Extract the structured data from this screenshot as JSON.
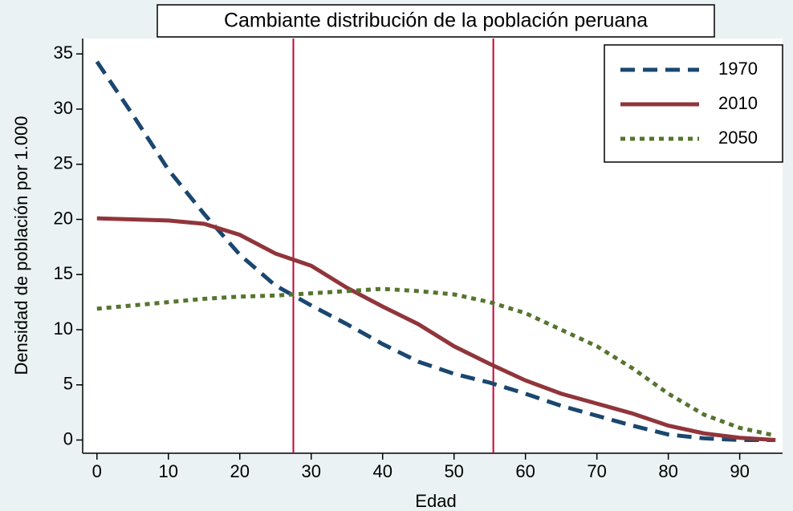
{
  "chart_data": {
    "type": "line",
    "title": "Cambiante distribución de la población peruana",
    "xlabel": "Edad",
    "ylabel": "Densidad de población por 1.000",
    "x": [
      0,
      5,
      10,
      15,
      20,
      25,
      30,
      35,
      40,
      45,
      50,
      55,
      60,
      65,
      70,
      75,
      80,
      85,
      90,
      95
    ],
    "series": [
      {
        "name": "1970",
        "color": "#1a476f",
        "dash": "dashed",
        "values": [
          34.3,
          29.5,
          24.5,
          20.5,
          16.8,
          14,
          12.2,
          10.5,
          8.7,
          7.1,
          6,
          5.2,
          4.2,
          3.1,
          2.2,
          1.3,
          0.5,
          0.15,
          0,
          0
        ]
      },
      {
        "name": "2010",
        "color": "#90353b",
        "dash": "solid",
        "values": [
          20.1,
          20,
          19.9,
          19.6,
          18.6,
          16.9,
          15.8,
          13.8,
          12.1,
          10.5,
          8.5,
          6.9,
          5.4,
          4.2,
          3.3,
          2.4,
          1.3,
          0.6,
          0.2,
          0
        ]
      },
      {
        "name": "2050",
        "color": "#55752f",
        "dash": "dotted",
        "values": [
          11.9,
          12.2,
          12.5,
          12.8,
          13,
          13.1,
          13.3,
          13.5,
          13.7,
          13.5,
          13.2,
          12.5,
          11.5,
          10,
          8.5,
          6.5,
          4.2,
          2.3,
          1.1,
          0.4
        ]
      }
    ],
    "vlines": [
      27.5,
      55.5
    ],
    "vline_color": "#c10534",
    "xlim": [
      -2,
      96
    ],
    "ylim": [
      -1.2,
      36.4
    ],
    "xticks": [
      0,
      10,
      20,
      30,
      40,
      50,
      60,
      70,
      80,
      90
    ],
    "yticks": [
      0,
      5,
      10,
      15,
      20,
      25,
      30,
      35
    ],
    "legend": "top-right"
  }
}
